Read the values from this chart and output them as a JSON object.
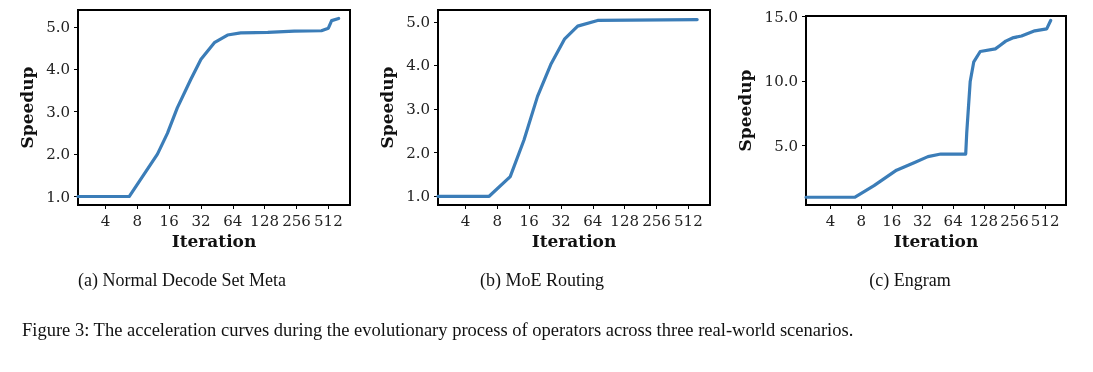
{
  "chart_data": [
    {
      "type": "line",
      "title": "(a) Normal Decode Set Meta",
      "xlabel": "Iteration",
      "ylabel": "Speedup",
      "log": "x",
      "marker": "none",
      "line_style": "solid",
      "xlim": [
        2.2,
        820
      ],
      "xticks": [
        4,
        8,
        16,
        32,
        64,
        128,
        256,
        512
      ],
      "ylim": [
        0.8,
        5.4
      ],
      "yticks": [
        {
          "value": 1,
          "label": "1.0"
        },
        {
          "value": 2,
          "label": "2.0"
        },
        {
          "value": 3,
          "label": "3.0"
        },
        {
          "value": 4,
          "label": "4.0"
        },
        {
          "value": 5,
          "label": "5.0"
        }
      ],
      "annotations": [
        "Figure 3: The acceleration curves during the evolutionary process of operators across three real-world scenarios."
      ],
      "series": [
        {
          "color": "#3b7db8",
          "x": [
            2.2,
            6.7,
            12.4,
            15.4,
            19.1,
            25.6,
            32,
            42.8,
            57,
            76,
            137,
            243,
            440,
            512,
            550,
            640
          ],
          "values": [
            1.0,
            1.0,
            2.0,
            2.49,
            3.09,
            3.76,
            4.24,
            4.63,
            4.81,
            4.86,
            4.87,
            4.9,
            4.91,
            4.97,
            5.15,
            5.2
          ]
        }
      ]
    },
    {
      "type": "line",
      "title": "(b) MoE Routing",
      "xlabel": "Iteration",
      "ylabel": "Speedup",
      "log": "x",
      "marker": "none",
      "line_style": "solid",
      "xlim": [
        2.2,
        820
      ],
      "xticks": [
        4,
        8,
        16,
        32,
        64,
        128,
        256,
        512
      ],
      "ylim": [
        0.8,
        5.27
      ],
      "yticks": [
        {
          "value": 1,
          "label": "1.0"
        },
        {
          "value": 2,
          "label": "2.0"
        },
        {
          "value": 3,
          "label": "3.0"
        },
        {
          "value": 4,
          "label": "4.0"
        },
        {
          "value": 5,
          "label": "5.0"
        }
      ],
      "series": [
        {
          "color": "#3b7db8",
          "x": [
            2.2,
            6.7,
            10.6,
            14.3,
            19.2,
            25.6,
            34.5,
            46,
            71,
            620
          ],
          "values": [
            1.0,
            1.0,
            1.45,
            2.29,
            3.29,
            4.02,
            4.6,
            4.9,
            5.03,
            5.05
          ]
        }
      ]
    },
    {
      "type": "line",
      "title": "(c) Engram",
      "xlabel": "Iteration",
      "ylabel": "Speedup",
      "log": "x",
      "marker": "none",
      "line_style": "solid",
      "xlim": [
        2.3,
        820
      ],
      "xticks": [
        4,
        8,
        16,
        32,
        64,
        128,
        256,
        512
      ],
      "ylim": [
        0.4,
        15.05
      ],
      "yticks": [
        {
          "value": 5,
          "label": "5.0"
        },
        {
          "value": 10,
          "label": "10.0"
        },
        {
          "value": 15,
          "label": "15.0"
        }
      ],
      "series": [
        {
          "color": "#3b7db8",
          "x": [
            2.3,
            6.9,
            10.7,
            17.8,
            26.8,
            36.2,
            48.4,
            85,
            87,
            94,
            102,
            118,
            166,
            183,
            210,
            245,
            300,
            405,
            530,
            580
          ],
          "values": [
            1.0,
            1.0,
            1.9,
            3.1,
            3.7,
            4.15,
            4.35,
            4.35,
            6.0,
            9.95,
            11.5,
            12.3,
            12.5,
            12.75,
            13.1,
            13.35,
            13.5,
            13.9,
            14.05,
            14.7
          ]
        }
      ]
    }
  ]
}
